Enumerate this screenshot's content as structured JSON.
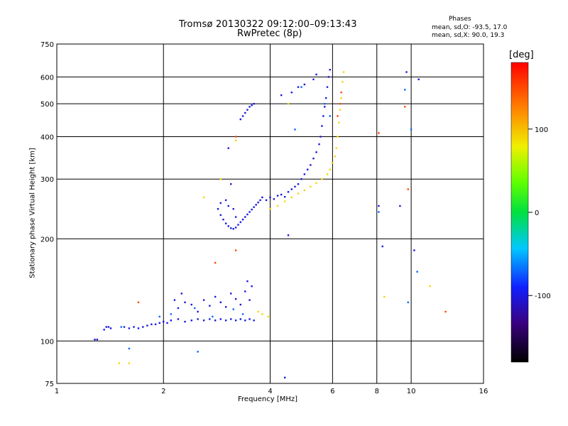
{
  "chart_data": {
    "type": "scatter",
    "title": "Tromsø 20130322 09:12:00–09:13:43",
    "subtitle": "RwPretec (8p)",
    "phases": {
      "title": "Phases",
      "o_line": "mean, sd,O: -93.5, 17.0",
      "x_line": "mean, sd,X:  90.0, 19.3"
    },
    "xlabel": "Frequency [MHz]",
    "ylabel": "Stationary phase Virtual Height [km]",
    "xscale": "log",
    "yscale": "log",
    "xlim": [
      1,
      16
    ],
    "ylim": [
      75,
      750
    ],
    "x_ticks": [
      1,
      2,
      4,
      6,
      8,
      10,
      16
    ],
    "x_tick_labels": [
      "1",
      "2",
      "4",
      "6",
      "8",
      "10",
      "16"
    ],
    "y_ticks": [
      75,
      100,
      200,
      300,
      400,
      500,
      600,
      750
    ],
    "y_tick_labels": [
      "75",
      "100",
      "200",
      "300",
      "400",
      "500",
      "600",
      "750"
    ],
    "grid": true,
    "colorbar": {
      "label": "[deg]",
      "range": [
        -180,
        180
      ],
      "ticks": [
        100,
        0,
        -100
      ],
      "tick_labels": [
        "100",
        "0",
        "-100"
      ]
    },
    "series": [
      {
        "phase_deg": -100,
        "points": [
          [
            1.28,
            101
          ],
          [
            1.3,
            101
          ],
          [
            1.36,
            108
          ],
          [
            1.38,
            110
          ],
          [
            1.4,
            110
          ],
          [
            1.42,
            109
          ],
          [
            1.55,
            110
          ],
          [
            1.6,
            109
          ],
          [
            1.65,
            110
          ],
          [
            1.7,
            109
          ],
          [
            1.75,
            110
          ],
          [
            1.8,
            111
          ],
          [
            1.85,
            112
          ],
          [
            1.9,
            112
          ],
          [
            1.95,
            113
          ],
          [
            2.0,
            114
          ],
          [
            2.05,
            113
          ],
          [
            2.1,
            115
          ],
          [
            2.2,
            116
          ],
          [
            2.3,
            114
          ],
          [
            2.4,
            115
          ],
          [
            2.5,
            116
          ],
          [
            2.6,
            115
          ],
          [
            2.7,
            116
          ],
          [
            2.8,
            115
          ],
          [
            2.9,
            116
          ],
          [
            3.0,
            115
          ],
          [
            3.1,
            116
          ],
          [
            3.2,
            115
          ],
          [
            3.3,
            116
          ],
          [
            3.4,
            115
          ],
          [
            3.5,
            116
          ],
          [
            3.6,
            115
          ],
          [
            2.2,
            125
          ],
          [
            2.3,
            130
          ],
          [
            2.4,
            128
          ],
          [
            2.5,
            122
          ],
          [
            2.6,
            132
          ],
          [
            2.7,
            127
          ],
          [
            2.8,
            135
          ],
          [
            2.9,
            130
          ],
          [
            3.0,
            126
          ],
          [
            3.1,
            138
          ],
          [
            3.2,
            133
          ],
          [
            3.3,
            128
          ],
          [
            3.4,
            140
          ],
          [
            3.5,
            132
          ],
          [
            3.45,
            150
          ],
          [
            3.55,
            145
          ],
          [
            2.15,
            132
          ],
          [
            2.25,
            138
          ],
          [
            2.85,
            245
          ],
          [
            2.9,
            235
          ],
          [
            2.95,
            228
          ],
          [
            3.0,
            222
          ],
          [
            3.05,
            218
          ],
          [
            3.1,
            215
          ],
          [
            3.15,
            214
          ],
          [
            3.2,
            216
          ],
          [
            3.25,
            220
          ],
          [
            3.3,
            224
          ],
          [
            3.35,
            228
          ],
          [
            3.4,
            232
          ],
          [
            3.45,
            236
          ],
          [
            3.5,
            240
          ],
          [
            3.55,
            244
          ],
          [
            3.6,
            248
          ],
          [
            3.65,
            252
          ],
          [
            3.7,
            256
          ],
          [
            3.75,
            260
          ],
          [
            3.8,
            265
          ],
          [
            2.9,
            255
          ],
          [
            3.0,
            260
          ],
          [
            3.05,
            250
          ],
          [
            3.15,
            245
          ],
          [
            3.1,
            290
          ],
          [
            3.2,
            232
          ],
          [
            3.3,
            450
          ],
          [
            3.35,
            460
          ],
          [
            3.4,
            470
          ],
          [
            3.45,
            480
          ],
          [
            3.5,
            490
          ],
          [
            3.55,
            495
          ],
          [
            3.6,
            500
          ],
          [
            3.05,
            370
          ],
          [
            3.9,
            260
          ],
          [
            4.0,
            265
          ],
          [
            4.1,
            262
          ],
          [
            4.2,
            268
          ],
          [
            4.3,
            270
          ],
          [
            4.4,
            266
          ],
          [
            4.5,
            275
          ],
          [
            4.6,
            280
          ],
          [
            4.7,
            285
          ],
          [
            4.8,
            290
          ],
          [
            4.9,
            300
          ],
          [
            5.0,
            310
          ],
          [
            5.1,
            320
          ],
          [
            5.2,
            330
          ],
          [
            5.3,
            345
          ],
          [
            5.4,
            360
          ],
          [
            5.5,
            380
          ],
          [
            5.55,
            400
          ],
          [
            5.6,
            430
          ],
          [
            5.65,
            460
          ],
          [
            5.7,
            490
          ],
          [
            5.75,
            520
          ],
          [
            5.8,
            560
          ],
          [
            5.85,
            600
          ],
          [
            5.9,
            630
          ],
          [
            4.3,
            530
          ],
          [
            4.6,
            540
          ],
          [
            4.8,
            560
          ],
          [
            5.0,
            570
          ],
          [
            5.3,
            590
          ],
          [
            5.4,
            610
          ],
          [
            4.4,
            78
          ],
          [
            8.1,
            250
          ],
          [
            8.3,
            190
          ],
          [
            9.3,
            250
          ],
          [
            9.7,
            620
          ],
          [
            10.5,
            590
          ],
          [
            10.2,
            185
          ],
          [
            4.5,
            205
          ]
        ]
      },
      {
        "phase_deg": -70,
        "points": [
          [
            1.52,
            110
          ],
          [
            1.95,
            118
          ],
          [
            2.1,
            120
          ],
          [
            2.45,
            125
          ],
          [
            2.75,
            118
          ],
          [
            3.15,
            124
          ],
          [
            3.35,
            120
          ],
          [
            4.7,
            420
          ],
          [
            5.7,
            500
          ],
          [
            5.9,
            460
          ],
          [
            9.6,
            550
          ],
          [
            10.0,
            420
          ],
          [
            9.8,
            130
          ],
          [
            10.4,
            160
          ],
          [
            2.5,
            93
          ],
          [
            1.6,
            95
          ],
          [
            8.1,
            240
          ],
          [
            4.9,
            560
          ]
        ]
      },
      {
        "phase_deg": 90,
        "points": [
          [
            4.0,
            245
          ],
          [
            4.2,
            250
          ],
          [
            4.4,
            258
          ],
          [
            4.6,
            265
          ],
          [
            4.8,
            272
          ],
          [
            5.0,
            278
          ],
          [
            5.2,
            285
          ],
          [
            5.4,
            292
          ],
          [
            5.6,
            300
          ],
          [
            5.8,
            310
          ],
          [
            5.9,
            320
          ],
          [
            6.0,
            335
          ],
          [
            6.1,
            350
          ],
          [
            6.15,
            370
          ],
          [
            6.2,
            400
          ],
          [
            6.25,
            440
          ],
          [
            6.3,
            480
          ],
          [
            6.35,
            520
          ],
          [
            6.4,
            580
          ],
          [
            6.45,
            620
          ],
          [
            3.7,
            122
          ],
          [
            3.8,
            120
          ],
          [
            3.95,
            118
          ],
          [
            1.5,
            86
          ],
          [
            1.6,
            86
          ],
          [
            8.4,
            135
          ],
          [
            11.3,
            145
          ],
          [
            2.6,
            265
          ],
          [
            2.9,
            300
          ],
          [
            3.2,
            390
          ],
          [
            4.5,
            500
          ]
        ]
      },
      {
        "phase_deg": 150,
        "points": [
          [
            6.2,
            460
          ],
          [
            6.3,
            500
          ],
          [
            6.35,
            540
          ],
          [
            3.2,
            185
          ],
          [
            2.8,
            170
          ],
          [
            8.1,
            410
          ],
          [
            9.8,
            280
          ],
          [
            9.6,
            490
          ],
          [
            12.5,
            122
          ],
          [
            1.7,
            130
          ],
          [
            3.2,
            400
          ]
        ]
      }
    ]
  }
}
